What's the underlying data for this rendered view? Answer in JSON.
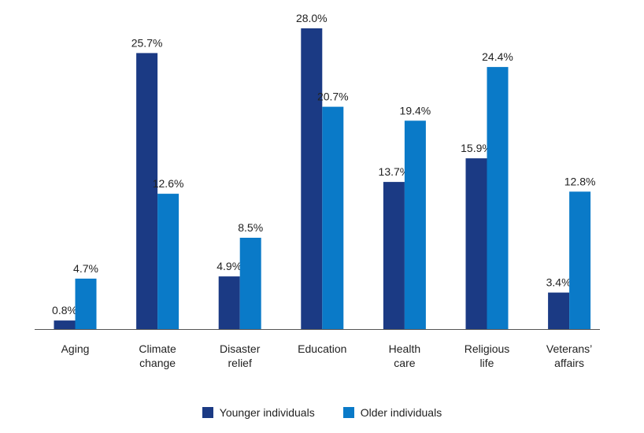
{
  "chart_data": {
    "type": "bar",
    "title": "",
    "xlabel": "",
    "ylabel": "",
    "ylim": [
      0,
      29
    ],
    "grid": false,
    "legend_position": "bottom-center",
    "categories": [
      [
        "Aging"
      ],
      [
        "Climate",
        "change"
      ],
      [
        "Disaster",
        "relief"
      ],
      [
        "Education"
      ],
      [
        "Health",
        "care"
      ],
      [
        "Religious",
        "life"
      ],
      [
        "Veterans’",
        "affairs"
      ]
    ],
    "series": [
      {
        "name": "Younger individuals",
        "color": "#1b3a84",
        "values": [
          0.8,
          25.7,
          4.9,
          28.0,
          13.7,
          15.9,
          3.4
        ],
        "labels": [
          "0.8%",
          "25.7%",
          "4.9%",
          "28.0%",
          "13.7%",
          "15.9%",
          "3.4%"
        ]
      },
      {
        "name": "Older individuals",
        "color": "#0a7ac8",
        "values": [
          4.7,
          12.6,
          8.5,
          20.7,
          19.4,
          24.4,
          12.8
        ],
        "labels": [
          "4.7%",
          "12.6%",
          "8.5%",
          "20.7%",
          "19.4%",
          "24.4%",
          "12.8%"
        ]
      }
    ]
  }
}
